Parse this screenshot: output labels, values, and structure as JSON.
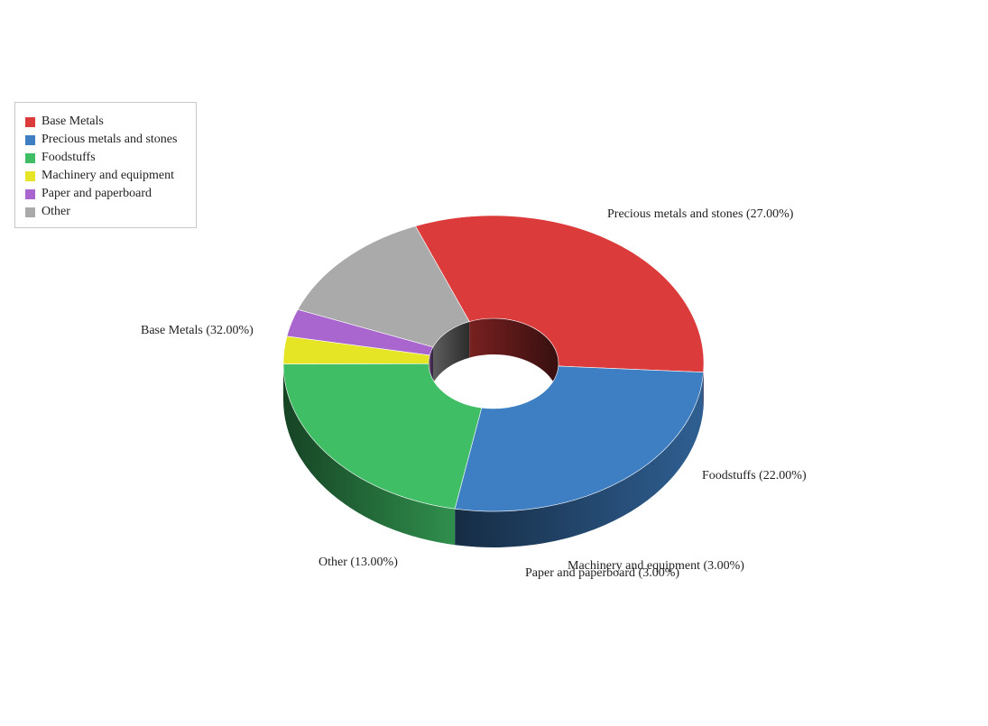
{
  "chart_data": {
    "type": "pie",
    "style": "3d-donut",
    "series": [
      {
        "name": "Base Metals",
        "value": 32.0,
        "color": "#DB3B3B"
      },
      {
        "name": "Precious metals and stones",
        "value": 27.0,
        "color": "#3E7FC3"
      },
      {
        "name": "Foodstuffs",
        "value": 22.0,
        "color": "#40BE66"
      },
      {
        "name": "Machinery and equipment",
        "value": 3.0,
        "color": "#E5E526"
      },
      {
        "name": "Paper and paperboard",
        "value": 3.0,
        "color": "#A866CE"
      },
      {
        "name": "Other",
        "value": 13.0,
        "color": "#AAAAAA"
      }
    ],
    "slice_labels": [
      "Base Metals (32.00%)",
      "Precious metals and stones (27.00%)",
      "Foodstuffs (22.00%)",
      "Machinery and equipment (3.00%)",
      "Paper and paperboard (3.00%)",
      "Other (13.00%)"
    ],
    "legend_position": "top-left"
  },
  "legend": {
    "items": [
      "Base Metals",
      "Precious metals and stones",
      "Foodstuffs",
      "Machinery and equipment",
      "Paper and paperboard",
      "Other"
    ]
  }
}
